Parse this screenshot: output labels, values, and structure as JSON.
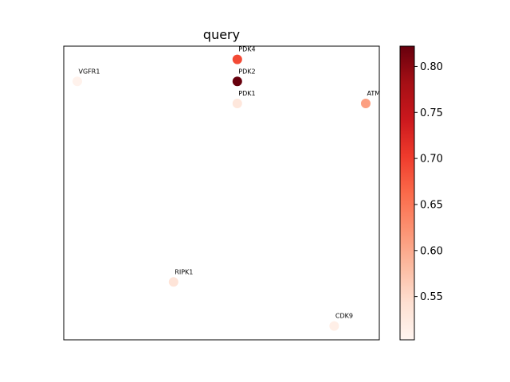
{
  "chart_data": {
    "type": "scatter",
    "title": "query",
    "xlabel": "",
    "ylabel": "",
    "x_ticks_visible": false,
    "y_ticks_visible": false,
    "grid": false,
    "xlim": [
      0,
      1
    ],
    "ylim": [
      0,
      1
    ],
    "colormap": "Reds",
    "color_range": [
      0.503,
      0.822
    ],
    "colorbar_ticks": [
      0.55,
      0.6,
      0.65,
      0.7,
      0.75,
      0.8
    ],
    "colorbar_tick_labels": [
      "0.55",
      "0.60",
      "0.65",
      "0.70",
      "0.75",
      "0.80"
    ],
    "points": [
      {
        "label": "PDK4",
        "x": 0.55,
        "y": 0.955,
        "value": 0.69
      },
      {
        "label": "VGFR1",
        "x": 0.043,
        "y": 0.88,
        "value": 0.508
      },
      {
        "label": "PDK2",
        "x": 0.55,
        "y": 0.88,
        "value": 0.822
      },
      {
        "label": "PDK1",
        "x": 0.55,
        "y": 0.805,
        "value": 0.53
      },
      {
        "label": "ATM",
        "x": 0.957,
        "y": 0.805,
        "value": 0.61
      },
      {
        "label": "RIPK1",
        "x": 0.348,
        "y": 0.197,
        "value": 0.535
      },
      {
        "label": "CDK9",
        "x": 0.857,
        "y": 0.047,
        "value": 0.515
      }
    ]
  }
}
